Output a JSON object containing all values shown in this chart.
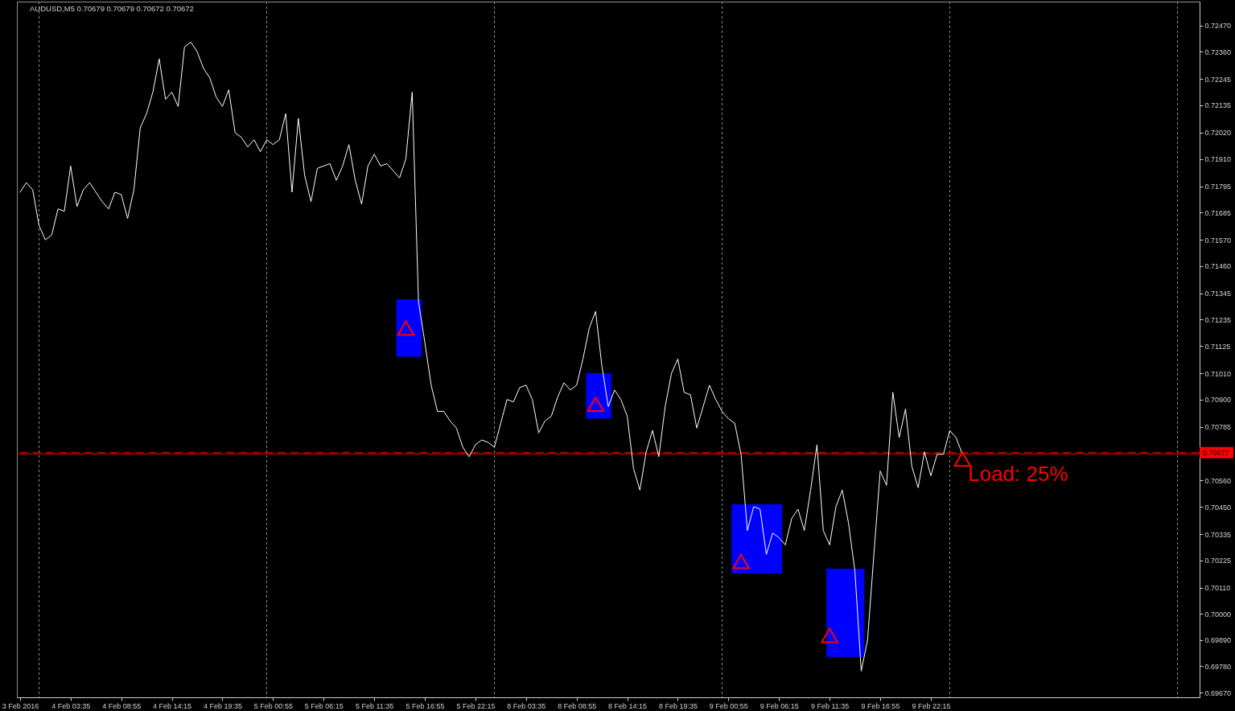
{
  "chart_data": {
    "type": "line",
    "title": "AUDUSD,M5  0.70679 0.70679 0.70672 0.70672",
    "categories": [
      "3 Feb 2016",
      null,
      null,
      null,
      null,
      null,
      null,
      null,
      "4 Feb 03:35",
      null,
      null,
      null,
      null,
      null,
      null,
      null,
      "4 Feb 08:55",
      null,
      null,
      null,
      null,
      null,
      null,
      null,
      "4 Feb 14:15",
      null,
      null,
      null,
      null,
      null,
      null,
      null,
      "4 Feb 19:35",
      null,
      null,
      null,
      null,
      null,
      null,
      null,
      "5 Feb 00:55",
      null,
      null,
      null,
      null,
      null,
      null,
      null,
      "5 Feb 06:15",
      null,
      null,
      null,
      null,
      null,
      null,
      null,
      "5 Feb 11:35",
      null,
      null,
      null,
      null,
      null,
      null,
      null,
      "5 Feb 16:55",
      null,
      null,
      null,
      null,
      null,
      null,
      null,
      "5 Feb 22:15",
      null,
      null,
      null,
      null,
      null,
      null,
      null,
      "8 Feb 03:35",
      null,
      null,
      null,
      null,
      null,
      null,
      null,
      "8 Feb 08:55",
      null,
      null,
      null,
      null,
      null,
      null,
      null,
      "8 Feb 14:15",
      null,
      null,
      null,
      null,
      null,
      null,
      null,
      "8 Feb 19:35",
      null,
      null,
      null,
      null,
      null,
      null,
      null,
      "9 Feb 00:55",
      null,
      null,
      null,
      null,
      null,
      null,
      null,
      "9 Feb 06:15",
      null,
      null,
      null,
      null,
      null,
      null,
      null,
      "9 Feb 11:35",
      null,
      null,
      null,
      null,
      null,
      null,
      null,
      "9 Feb 16:55",
      null,
      null,
      null,
      null,
      null,
      null,
      null,
      "9 Feb 22:15",
      null,
      null,
      null,
      null,
      null,
      null,
      null,
      null,
      null,
      null,
      null,
      null,
      null,
      null,
      null,
      null,
      null,
      null,
      null,
      null,
      null,
      null,
      null,
      null,
      null,
      null,
      null,
      null,
      null,
      null,
      null,
      null,
      null,
      null,
      null,
      null,
      null,
      null,
      null,
      null,
      null,
      null
    ],
    "ylim": [
      0.6965,
      0.7257
    ],
    "yticks": [
      {
        "value": 0.7247,
        "label": "0.72470"
      },
      {
        "value": 0.7236,
        "label": "0.72360"
      },
      0.72245,
      0.72135,
      {
        "value": 0.7202,
        "label": "0.72020"
      },
      {
        "value": 0.7191,
        "label": "0.71910"
      },
      0.71795,
      0.71685,
      {
        "value": 0.7157,
        "label": "0.71570"
      },
      {
        "value": 0.7146,
        "label": "0.71460"
      },
      0.71345,
      0.71235,
      0.71125,
      {
        "value": 0.7101,
        "label": "0.71010"
      },
      {
        "value": 0.709,
        "label": "0.70900"
      },
      0.70785,
      {
        "value": 0.7056,
        "label": "0.70560"
      },
      {
        "value": 0.7045,
        "label": "0.70450"
      },
      0.70335,
      0.70225,
      {
        "value": 0.7011,
        "label": "0.70110"
      },
      {
        "value": 0.7,
        "label": "0.70000"
      },
      {
        "value": 0.6989,
        "label": "0.69890"
      },
      {
        "value": 0.6978,
        "label": "0.69780"
      },
      {
        "value": 0.6967,
        "label": "0.69670"
      }
    ],
    "series": [
      {
        "color": "#0000ff",
        "values": [
          null,
          null,
          null,
          null,
          null,
          null,
          null,
          null,
          null,
          null,
          null,
          null,
          null,
          null,
          null,
          null,
          null,
          null,
          null,
          null,
          null,
          null,
          null,
          null,
          null,
          null,
          null,
          null,
          null,
          null,
          null,
          null,
          null,
          null,
          null,
          null,
          null,
          null,
          null,
          null,
          null,
          null,
          null,
          null,
          null,
          null,
          null,
          null,
          null,
          null,
          null,
          null,
          null,
          null,
          null,
          null,
          null,
          null,
          null,
          null,
          null,
          null,
          null,
          null,
          null,
          null,
          null,
          null,
          null,
          null,
          null,
          null,
          null,
          null,
          null,
          null,
          null,
          null,
          null,
          null,
          null,
          null,
          null,
          null,
          null,
          null,
          null,
          null,
          null,
          null,
          null,
          null,
          null,
          null,
          null,
          null,
          null,
          null,
          null,
          null,
          null,
          null,
          null,
          null,
          null,
          null,
          null,
          null,
          null,
          null,
          null,
          null,
          null,
          null,
          null,
          null,
          null,
          null,
          null,
          null,
          null,
          null,
          null,
          null,
          null,
          null,
          null,
          null,
          null,
          null,
          null,
          null,
          null,
          null,
          null,
          null,
          null,
          null,
          null,
          null,
          null,
          null,
          null,
          null,
          null,
          null,
          null,
          null,
          null,
          null,
          null,
          null,
          null,
          null,
          null,
          null,
          null,
          null,
          null,
          null,
          null,
          null,
          null,
          null,
          null,
          null,
          null,
          null,
          null,
          null,
          null,
          null,
          null,
          null,
          null,
          null,
          null,
          null,
          null,
          null,
          null,
          null,
          null,
          null,
          null,
          null,
          null
        ],
        "lower": [
          null,
          null,
          null,
          null,
          null,
          null,
          null,
          null,
          null,
          null,
          null,
          null,
          null,
          null,
          null,
          null,
          null,
          null,
          null,
          null,
          null,
          null,
          null,
          null,
          null,
          null,
          null,
          null,
          null,
          null,
          null,
          null,
          null,
          null,
          null,
          null,
          null,
          null,
          null,
          null,
          null,
          null,
          null,
          null,
          null,
          null,
          null,
          null,
          null,
          null,
          null,
          null,
          null,
          null,
          null,
          null,
          null,
          null,
          null,
          null,
          0.7108,
          0.7108,
          0.7108,
          0.7108,
          null,
          null,
          null,
          null,
          null,
          null,
          null,
          null,
          null,
          null,
          null,
          null,
          null,
          null,
          null,
          null,
          null,
          null,
          null,
          null,
          null,
          null,
          null,
          null,
          null,
          null,
          0.7082,
          0.7082,
          0.7082,
          0.7082,
          null,
          null,
          null,
          null,
          null,
          null,
          null,
          null,
          null,
          null,
          null,
          null,
          null,
          null,
          null,
          null,
          null,
          null,
          null,
          0.7017,
          0.7017,
          0.7017,
          0.7017,
          0.7017,
          0.7017,
          0.7017,
          0.7017,
          null,
          null,
          null,
          null,
          null,
          null,
          null,
          0.6982,
          0.6982,
          0.6982,
          0.6982,
          0.6982,
          0.6982,
          null,
          null,
          null,
          null,
          null,
          null,
          null,
          null,
          null,
          null,
          null,
          null,
          null,
          null,
          null,
          null,
          null,
          null,
          null,
          null,
          null,
          null,
          null,
          null,
          null,
          null,
          null,
          null,
          null,
          null,
          null,
          null,
          null,
          null,
          null,
          null,
          null,
          null,
          null,
          null,
          null,
          null,
          null,
          null,
          null,
          null,
          null,
          null,
          null,
          null,
          null,
          null,
          null
        ],
        "upper": [
          null,
          null,
          null,
          null,
          null,
          null,
          null,
          null,
          null,
          null,
          null,
          null,
          null,
          null,
          null,
          null,
          null,
          null,
          null,
          null,
          null,
          null,
          null,
          null,
          null,
          null,
          null,
          null,
          null,
          null,
          null,
          null,
          null,
          null,
          null,
          null,
          null,
          null,
          null,
          null,
          null,
          null,
          null,
          null,
          null,
          null,
          null,
          null,
          null,
          null,
          null,
          null,
          null,
          null,
          null,
          null,
          null,
          null,
          null,
          null,
          0.7132,
          0.7132,
          0.7132,
          0.7132,
          null,
          null,
          null,
          null,
          null,
          null,
          null,
          null,
          null,
          null,
          null,
          null,
          null,
          null,
          null,
          null,
          null,
          null,
          null,
          null,
          null,
          null,
          null,
          null,
          null,
          null,
          0.7101,
          0.7101,
          0.7101,
          0.7101,
          null,
          null,
          null,
          null,
          null,
          null,
          null,
          null,
          null,
          null,
          null,
          null,
          null,
          null,
          null,
          null,
          null,
          null,
          null,
          0.7046,
          0.7046,
          0.7046,
          0.7046,
          0.7046,
          0.7046,
          0.7046,
          0.7046,
          null,
          null,
          null,
          null,
          null,
          null,
          null,
          0.7019,
          0.7019,
          0.7019,
          0.7019,
          0.7019,
          0.7019,
          null,
          null,
          null,
          null,
          null,
          null,
          null,
          null,
          null,
          null,
          null,
          null,
          null,
          null,
          null,
          null,
          null,
          null,
          null,
          null,
          null,
          null,
          null,
          null,
          null,
          null,
          null,
          null,
          null,
          null,
          null,
          null,
          null,
          null,
          null,
          null,
          null,
          null,
          null,
          null,
          null,
          null,
          null,
          null,
          null,
          null,
          null,
          null,
          null,
          null,
          null,
          null,
          null
        ]
      },
      {
        "color": "#ffffff",
        "values": [
          0.7177,
          0.7181,
          0.7178,
          0.7163,
          0.7157,
          0.7159,
          0.717,
          0.7169,
          0.7188,
          0.7171,
          0.7178,
          0.7181,
          0.7177,
          0.7173,
          0.717,
          0.7177,
          0.7176,
          0.7166,
          0.7178,
          0.7204,
          0.721,
          0.7219,
          0.7233,
          0.7216,
          0.7219,
          0.7213,
          0.7238,
          0.724,
          0.7236,
          0.7229,
          0.7225,
          0.7217,
          0.7213,
          0.722,
          0.7202,
          0.72,
          0.7196,
          0.7199,
          0.7194,
          0.7199,
          0.7197,
          0.7199,
          0.721,
          0.7177,
          0.7208,
          0.7184,
          0.7173,
          0.7187,
          0.7188,
          0.7189,
          0.7182,
          0.7188,
          0.7197,
          0.7182,
          0.7172,
          0.7188,
          0.7193,
          0.7188,
          0.7189,
          0.7186,
          0.7183,
          0.7191,
          0.7219,
          0.7131,
          0.7114,
          0.7096,
          0.7085,
          0.7085,
          0.7081,
          0.7078,
          0.707,
          0.7066,
          0.7071,
          0.7073,
          0.7072,
          0.707,
          0.708,
          0.709,
          0.7089,
          0.7095,
          0.7096,
          0.709,
          0.7076,
          0.7081,
          0.7083,
          0.7091,
          0.7097,
          0.7094,
          0.7096,
          0.7107,
          0.712,
          0.7127,
          0.7104,
          0.7087,
          0.7094,
          0.709,
          0.7083,
          0.7061,
          0.7052,
          0.7068,
          0.7077,
          0.7066,
          0.7087,
          0.7101,
          0.7107,
          0.7093,
          0.7092,
          0.7078,
          0.7087,
          0.7096,
          0.709,
          0.7085,
          0.7082,
          0.708,
          0.7067,
          0.7035,
          0.7045,
          0.7044,
          0.7025,
          0.7034,
          0.7032,
          0.7029,
          0.704,
          0.7044,
          0.7035,
          0.7052,
          0.7071,
          0.7035,
          0.7029,
          0.7045,
          0.7052,
          0.7038,
          0.7018,
          0.6976,
          0.6989,
          0.7025,
          0.706,
          0.7054,
          0.7093,
          0.7074,
          0.7086,
          0.7062,
          0.7053,
          0.7068,
          0.7058,
          0.7067,
          0.7067,
          0.7077,
          0.7074,
          0.7067,
          null,
          null,
          null,
          null,
          null,
          null,
          null,
          null,
          null,
          null,
          null,
          null,
          null,
          null,
          null,
          null,
          null,
          null,
          null,
          null,
          null,
          null,
          null,
          null,
          null,
          null,
          null,
          null,
          null,
          null,
          null,
          null,
          null,
          null,
          null,
          null,
          null
        ]
      },
      {
        "type": "scatter",
        "color": "#ff0000",
        "marker": "triangle",
        "values": [
          null,
          null,
          null,
          null,
          null,
          null,
          null,
          null,
          null,
          null,
          null,
          null,
          null,
          null,
          null,
          null,
          null,
          null,
          null,
          null,
          null,
          null,
          null,
          null,
          null,
          null,
          null,
          null,
          null,
          null,
          null,
          null,
          null,
          null,
          null,
          null,
          null,
          null,
          null,
          null,
          null,
          null,
          null,
          null,
          null,
          null,
          null,
          null,
          null,
          null,
          null,
          null,
          null,
          null,
          null,
          null,
          null,
          null,
          null,
          null,
          null,
          0.712,
          null,
          null,
          null,
          null,
          null,
          null,
          null,
          null,
          null,
          null,
          null,
          null,
          null,
          null,
          null,
          null,
          null,
          null,
          null,
          null,
          null,
          null,
          null,
          null,
          null,
          null,
          null,
          null,
          null,
          0.7088,
          null,
          null,
          null,
          null,
          null,
          null,
          null,
          null,
          null,
          null,
          null,
          null,
          null,
          null,
          null,
          null,
          null,
          null,
          null,
          null,
          null,
          null,
          0.7022,
          null,
          null,
          null,
          null,
          null,
          null,
          null,
          null,
          null,
          null,
          null,
          null,
          null,
          0.6991,
          null,
          null,
          null,
          null,
          null,
          null,
          null,
          null,
          null,
          null,
          null,
          null,
          null,
          null,
          null,
          null,
          null,
          null,
          null,
          null,
          0.7065,
          null,
          null,
          null,
          null,
          null,
          null,
          null,
          null,
          null,
          null,
          null,
          null,
          null,
          null,
          null,
          null,
          null,
          null,
          null,
          null,
          null,
          null,
          null,
          null,
          null,
          null,
          null,
          null,
          null,
          null,
          null,
          null,
          null,
          null,
          null,
          null,
          null
        ]
      }
    ],
    "ref_lines": [
      {
        "axis": "y",
        "value": 0.70672,
        "color": "#ff0000",
        "line_style": "solid"
      },
      {
        "axis": "y",
        "value": 0.70677,
        "label": "0.70677",
        "color": "#ff0000",
        "line_style": "dashed"
      }
    ],
    "annotations": [
      "Load: 25%"
    ]
  }
}
